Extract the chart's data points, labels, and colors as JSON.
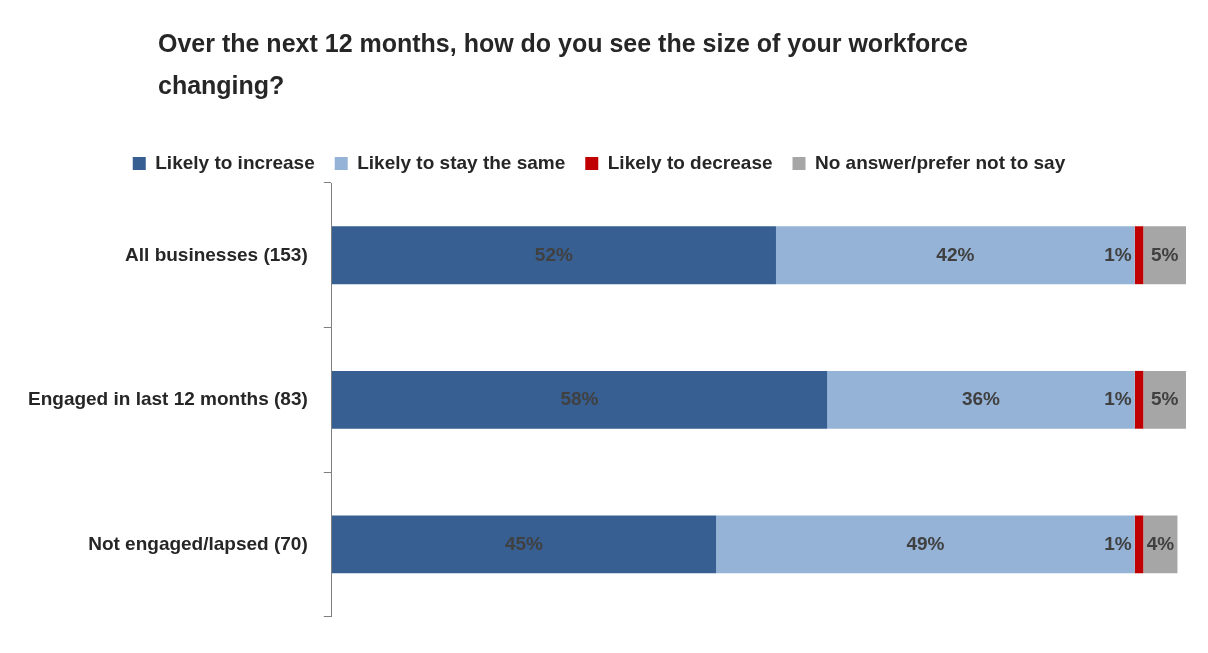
{
  "chart_data": {
    "type": "bar",
    "title": "Over the next 12 months, how do you see the size of your workforce changing?",
    "orientation": "horizontal",
    "stacked": true,
    "categories": [
      "All businesses (153)",
      "Engaged in last 12 months (83)",
      "Not engaged/lapsed (70)"
    ],
    "xlim": [
      0,
      100
    ],
    "tick_labels": "y",
    "legend": "top",
    "grid": false,
    "series": [
      {
        "name": "Likely to increase",
        "color": "#375f92",
        "values": [
          52,
          58,
          45
        ],
        "value_labels": [
          "52%",
          "58%",
          "45%"
        ]
      },
      {
        "name": "Likely to stay the same",
        "color": "#95b3d7",
        "values": [
          42,
          36,
          49
        ],
        "value_labels": [
          "42%",
          "36%",
          "49%"
        ]
      },
      {
        "name": "Likely to decrease",
        "color": "#c00000",
        "values": [
          1,
          1,
          1
        ],
        "value_labels": [
          "1%",
          "1%",
          "1%"
        ]
      },
      {
        "name": "No answer/prefer not to say",
        "color": "#a6a6a6",
        "values": [
          5,
          5,
          4
        ],
        "value_labels": [
          "5%",
          "5%",
          "4%"
        ]
      }
    ]
  }
}
